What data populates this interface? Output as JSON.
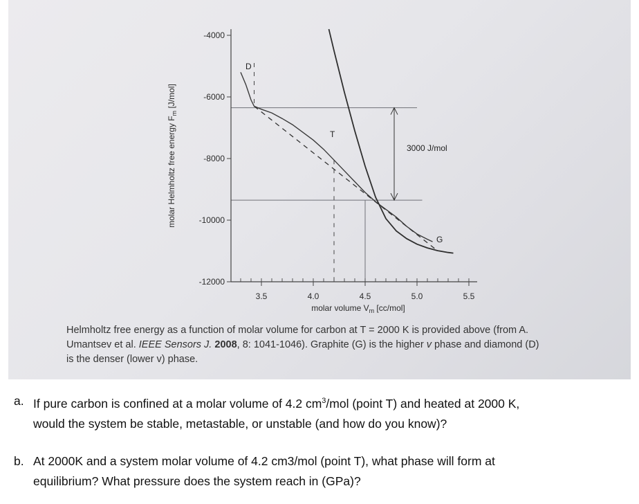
{
  "chart_data": {
    "type": "line",
    "ylabel": "molar Helmholtz free energy F_m [J/mol]",
    "ylabel_main": "molar Helmholtz free energy F",
    "ylabel_sub": "m",
    "ylabel_unit": " [J/mol]",
    "xlabel": "molar volume V_m [cc/mol]",
    "xlabel_main": "molar volume V",
    "xlabel_sub": "m",
    "xlabel_unit": " [cc/mol]",
    "x_ticks": [
      "3.5",
      "4.0",
      "4.5",
      "5.0",
      "5.5"
    ],
    "y_ticks": [
      "-4000",
      "-6000",
      "-8000",
      "-10000",
      "-12000"
    ],
    "xlim": [
      3.2,
      5.6
    ],
    "ylim": [
      -12000,
      -3500
    ],
    "series": [
      {
        "name": "D",
        "values": [
          [
            3.3,
            -5200
          ],
          [
            3.35,
            -5600
          ],
          [
            3.4,
            -6100
          ],
          [
            3.43,
            -6300
          ],
          [
            3.5,
            -6400
          ],
          [
            3.6,
            -6520
          ],
          [
            3.7,
            -6700
          ],
          [
            3.8,
            -6900
          ],
          [
            3.9,
            -7150
          ],
          [
            4.0,
            -7400
          ],
          [
            4.1,
            -7700
          ],
          [
            4.2,
            -8050
          ],
          [
            4.3,
            -8400
          ],
          [
            4.4,
            -8750
          ],
          [
            4.5,
            -9100
          ],
          [
            4.6,
            -9400
          ],
          [
            4.7,
            -9650
          ],
          [
            4.8,
            -9900
          ],
          [
            4.9,
            -10200
          ],
          [
            5.0,
            -10450
          ],
          [
            5.1,
            -10620
          ],
          [
            5.15,
            -10700
          ]
        ]
      },
      {
        "name": "G",
        "values": [
          [
            4.15,
            -3800
          ],
          [
            4.2,
            -4500
          ],
          [
            4.3,
            -5850
          ],
          [
            4.4,
            -7100
          ],
          [
            4.5,
            -8250
          ],
          [
            4.6,
            -9250
          ],
          [
            4.7,
            -9950
          ],
          [
            4.8,
            -10350
          ],
          [
            4.9,
            -10600
          ],
          [
            5.0,
            -10780
          ],
          [
            5.1,
            -10900
          ],
          [
            5.2,
            -10990
          ],
          [
            5.3,
            -11050
          ],
          [
            5.35,
            -11070
          ]
        ]
      },
      {
        "name": "common tangent",
        "values": [
          [
            3.43,
            -6300
          ],
          [
            5.2,
            -11000
          ]
        ]
      }
    ],
    "annotations": {
      "T": "T",
      "D": "D",
      "G": "G",
      "gap": "3000 J/mol"
    },
    "reference_levels": [
      -6350,
      -9350
    ]
  },
  "caption": {
    "line1": "Helmholtz free energy as a function of molar volume for carbon at T = 2000 K is provided above (from A.",
    "line2a": "Umantsev et al. ",
    "line2_journal": "IEEE Sensors J.",
    "line2_year": "2008",
    "line2b": ", 8: 1041-1046).  Graphite (G) is the higher ",
    "line2_v": "v",
    "line2c": " phase and diamond (D)",
    "line3": "is the denser (lower v) phase."
  },
  "questions": {
    "a_letter": "a.",
    "a_text_1": "If pure carbon is confined at a molar volume of 4.2 cm",
    "a_sup": "3",
    "a_text_2": "/mol (point T) and heated at 2000 K,",
    "a_text_3": "would the system be stable, metastable, or unstable (and how do you know)?",
    "b_letter": "b.",
    "b_text_1": "At 2000K and a system molar volume of 4.2 cm3/mol (point T), what phase will form at",
    "b_text_2": "equilibrium? What pressure does the system reach in (GPa)?"
  }
}
